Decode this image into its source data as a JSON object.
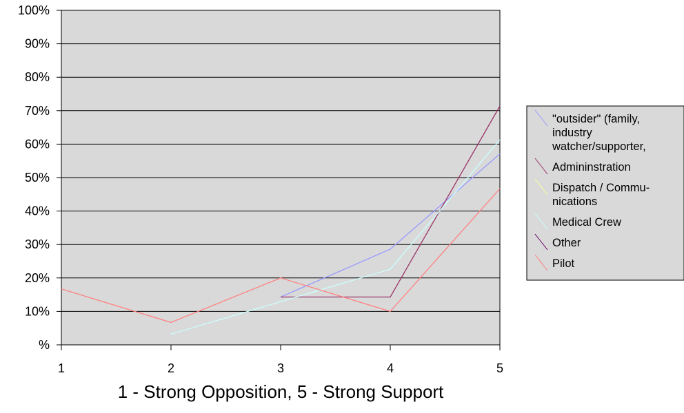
{
  "chart_data": {
    "type": "line",
    "title": "",
    "xlabel": "1 - Strong Opposition, 5 - Strong Support",
    "ylabel": "",
    "x": [
      1,
      2,
      3,
      4,
      5
    ],
    "x_tick_labels": [
      "1",
      "2",
      "3",
      "4",
      "5"
    ],
    "ylim": [
      0,
      100
    ],
    "y_tick_labels": [
      "%",
      "10%",
      "20%",
      "30%",
      "40%",
      "50%",
      "60%",
      "70%",
      "80%",
      "90%",
      "100%"
    ],
    "grid": "horizontal",
    "plot_background": "#d9d9d9",
    "legend_position": "right",
    "series": [
      {
        "name": "\"outsider\" (family, industry watcher/supporter,",
        "legend_lines": [
          "\"outsider\" (family,",
          "industry",
          "watcher/supporter,"
        ],
        "color": "#9999ff",
        "values": [
          null,
          null,
          14.3,
          28.6,
          57.1
        ]
      },
      {
        "name": "Admininstration",
        "legend_lines": [
          "Admininstration"
        ],
        "color": "#993366",
        "values": [
          null,
          null,
          14.3,
          14.3,
          71.4
        ]
      },
      {
        "name": "Dispatch / Communications",
        "legend_lines": [
          "Dispatch / Commu-",
          "nications"
        ],
        "color": "#ffff99",
        "values": [
          null,
          null,
          null,
          null,
          null
        ]
      },
      {
        "name": "Medical Crew",
        "legend_lines": [
          "Medical Crew"
        ],
        "color": "#ccffff",
        "values": [
          null,
          3.2,
          12.9,
          22.6,
          61.3
        ]
      },
      {
        "name": "Other",
        "legend_lines": [
          "Other"
        ],
        "color": "#660066",
        "values": [
          null,
          null,
          null,
          null,
          null
        ]
      },
      {
        "name": "Pilot",
        "legend_lines": [
          "Pilot"
        ],
        "color": "#ff8080",
        "values": [
          16.7,
          6.7,
          20.0,
          10.0,
          46.7
        ]
      }
    ]
  }
}
